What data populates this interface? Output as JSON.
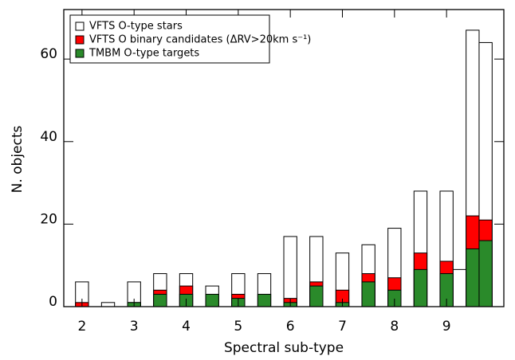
{
  "chart_data": {
    "type": "bar",
    "xlabel": "Spectral sub-type",
    "ylabel": "N. objects",
    "x": [
      2,
      2.5,
      3,
      3.5,
      4,
      4.5,
      5,
      5.5,
      6,
      6.5,
      7,
      7.5,
      8,
      8.5,
      9,
      9.25,
      9.5,
      9.75
    ],
    "series": [
      {
        "name": "VFTS O-type stars",
        "color": "#ffffff",
        "values": [
          6,
          1,
          6,
          8,
          8,
          5,
          8,
          8,
          17,
          17,
          13,
          15,
          19,
          28,
          28,
          9,
          67,
          64
        ]
      },
      {
        "name": "VFTS O binary candidates (ΔRV>20km s⁻¹)",
        "color": "#ff0000",
        "values": [
          1,
          0,
          1,
          4,
          5,
          0,
          3,
          0,
          2,
          6,
          4,
          8,
          7,
          13,
          11,
          0,
          22,
          21
        ]
      },
      {
        "name": "TMBM O-type targets",
        "color": "#2a8a2a",
        "values": [
          0,
          0,
          1,
          3,
          3,
          3,
          2,
          3,
          1,
          5,
          1,
          6,
          4,
          9,
          8,
          0,
          14,
          16
        ]
      }
    ],
    "xlim": [
      1.65,
      10.1
    ],
    "xticks": [
      2,
      3,
      4,
      5,
      6,
      7,
      8,
      9
    ],
    "ylim": [
      0,
      72
    ],
    "yticks": [
      0,
      20,
      40,
      60
    ],
    "legend": "upper left"
  }
}
